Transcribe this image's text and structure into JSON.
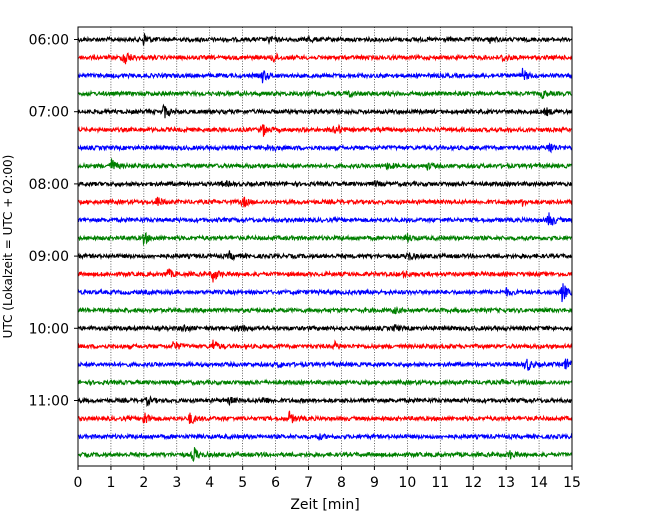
{
  "chart_data": {
    "type": "line",
    "title": "",
    "xlabel": "Zeit  [min]",
    "ylabel": "UTC (Lokalzeit = UTC + 02:00)",
    "xlim": [
      0,
      15
    ],
    "x_ticks": [
      "0",
      "1",
      "2",
      "3",
      "4",
      "5",
      "6",
      "7",
      "8",
      "9",
      "10",
      "11",
      "12",
      "13",
      "14",
      "15"
    ],
    "y_ticks": [
      "06:00",
      "07:00",
      "08:00",
      "09:00",
      "10:00",
      "11:00"
    ],
    "grid": "vertical dotted at each minute",
    "trace_colors": [
      "#000000",
      "#ff0000",
      "#0000ff",
      "#008000"
    ],
    "traces_per_hour": 4,
    "trace_interval_min": 15,
    "series": [
      {
        "start": "06:00",
        "color": "#000000",
        "events": [
          [
            2.0,
            1.0
          ],
          [
            5.8,
            0.45
          ],
          [
            7.0,
            0.4
          ],
          [
            12.5,
            0.35
          ]
        ]
      },
      {
        "start": "06:15",
        "color": "#ff0000",
        "events": [
          [
            1.4,
            1.3
          ],
          [
            5.9,
            0.75
          ],
          [
            12.9,
            0.55
          ]
        ]
      },
      {
        "start": "06:30",
        "color": "#0000ff",
        "events": [
          [
            5.6,
            0.85
          ],
          [
            13.5,
            0.85
          ]
        ]
      },
      {
        "start": "06:45",
        "color": "#008000",
        "events": [
          [
            8.2,
            0.45
          ],
          [
            14.1,
            0.5
          ]
        ]
      },
      {
        "start": "07:00",
        "color": "#000000",
        "events": [
          [
            2.6,
            1.0
          ],
          [
            14.2,
            0.5
          ]
        ]
      },
      {
        "start": "07:15",
        "color": "#ff0000",
        "events": [
          [
            5.6,
            0.9
          ],
          [
            7.8,
            1.1
          ]
        ]
      },
      {
        "start": "07:30",
        "color": "#0000ff",
        "events": [
          [
            5.8,
            0.8
          ],
          [
            14.3,
            0.9
          ]
        ]
      },
      {
        "start": "07:45",
        "color": "#008000",
        "events": [
          [
            1.0,
            1.0
          ],
          [
            9.4,
            0.55
          ],
          [
            10.6,
            0.4
          ]
        ]
      },
      {
        "start": "08:00",
        "color": "#000000",
        "events": [
          [
            4.4,
            0.4
          ],
          [
            9.0,
            0.3
          ]
        ]
      },
      {
        "start": "08:15",
        "color": "#ff0000",
        "events": [
          [
            2.4,
            0.75
          ],
          [
            5.0,
            0.7
          ],
          [
            13.5,
            0.45
          ]
        ]
      },
      {
        "start": "08:30",
        "color": "#0000ff",
        "events": [
          [
            14.3,
            1.2
          ]
        ]
      },
      {
        "start": "08:45",
        "color": "#008000",
        "events": [
          [
            2.0,
            0.85
          ],
          [
            10.0,
            0.45
          ]
        ]
      },
      {
        "start": "09:00",
        "color": "#000000",
        "events": [
          [
            4.6,
            0.5
          ],
          [
            10.0,
            0.7
          ]
        ]
      },
      {
        "start": "09:15",
        "color": "#ff0000",
        "events": [
          [
            2.7,
            0.8
          ],
          [
            4.1,
            1.0
          ],
          [
            9.9,
            0.4
          ]
        ]
      },
      {
        "start": "09:30",
        "color": "#0000ff",
        "events": [
          [
            13.0,
            0.45
          ],
          [
            14.7,
            1.3
          ]
        ]
      },
      {
        "start": "09:45",
        "color": "#008000",
        "events": [
          [
            9.6,
            0.35
          ]
        ]
      },
      {
        "start": "10:00",
        "color": "#000000",
        "events": [
          [
            3.2,
            0.45
          ],
          [
            4.9,
            0.4
          ],
          [
            9.6,
            0.4
          ]
        ]
      },
      {
        "start": "10:15",
        "color": "#ff0000",
        "events": [
          [
            2.9,
            0.75
          ],
          [
            4.1,
            0.85
          ],
          [
            7.8,
            0.45
          ]
        ]
      },
      {
        "start": "10:30",
        "color": "#0000ff",
        "events": [
          [
            6.1,
            0.35
          ],
          [
            13.6,
            1.05
          ],
          [
            14.8,
            0.9
          ]
        ]
      },
      {
        "start": "10:45",
        "color": "#008000",
        "events": [
          [
            12.9,
            0.3
          ]
        ]
      },
      {
        "start": "11:00",
        "color": "#000000",
        "events": [
          [
            2.1,
            0.5
          ],
          [
            4.6,
            0.45
          ],
          [
            5.6,
            0.55
          ]
        ]
      },
      {
        "start": "11:15",
        "color": "#ff0000",
        "events": [
          [
            2.0,
            1.0
          ],
          [
            3.4,
            0.85
          ],
          [
            6.4,
            0.95
          ]
        ]
      },
      {
        "start": "11:30",
        "color": "#0000ff",
        "events": [
          [
            7.3,
            0.3
          ]
        ]
      },
      {
        "start": "11:45",
        "color": "#008000",
        "events": [
          [
            3.5,
            1.05
          ],
          [
            13.1,
            0.55
          ]
        ]
      }
    ]
  }
}
